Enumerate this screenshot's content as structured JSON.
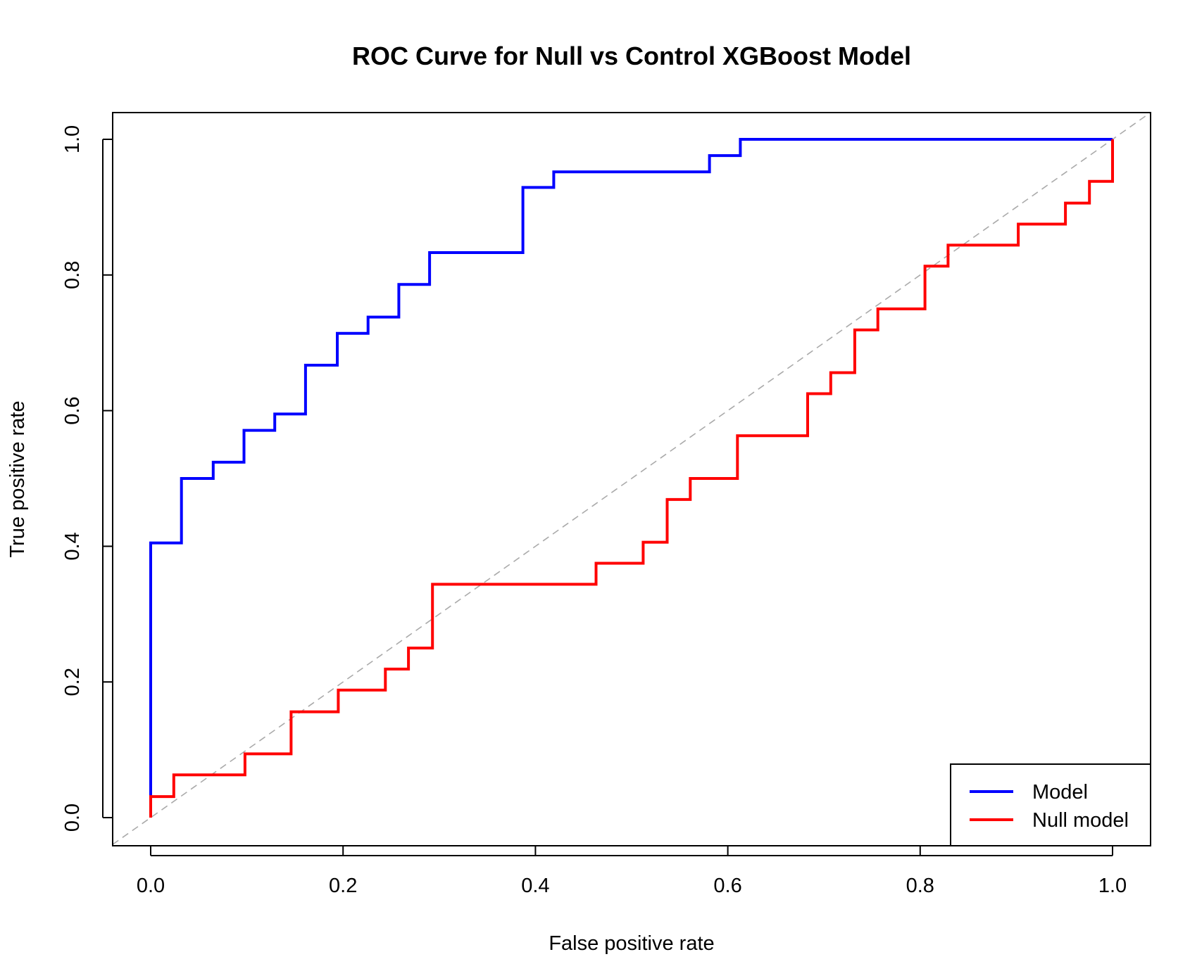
{
  "chart_data": {
    "type": "line",
    "title": "ROC Curve for Null vs Control XGBoost Model",
    "xlabel": "False positive rate",
    "ylabel": "True positive rate",
    "xlim": [
      0,
      1
    ],
    "ylim": [
      0,
      1
    ],
    "xticks": [
      "0.0",
      "0.2",
      "0.4",
      "0.6",
      "0.8",
      "1.0"
    ],
    "yticks": [
      "0.0",
      "0.2",
      "0.4",
      "0.6",
      "0.8",
      "1.0"
    ],
    "grid": false,
    "legend_position": "bottom-right",
    "series": [
      {
        "name": "Model",
        "color": "#0000ff",
        "step": true,
        "x": [
          0.0,
          0.0,
          0.032,
          0.032,
          0.065,
          0.065,
          0.097,
          0.097,
          0.129,
          0.129,
          0.161,
          0.161,
          0.194,
          0.194,
          0.226,
          0.226,
          0.258,
          0.258,
          0.29,
          0.29,
          0.387,
          0.387,
          0.419,
          0.419,
          0.581,
          0.581,
          0.613,
          0.613,
          1.0
        ],
        "y": [
          0.0,
          0.405,
          0.405,
          0.5,
          0.5,
          0.524,
          0.524,
          0.571,
          0.571,
          0.595,
          0.595,
          0.667,
          0.667,
          0.714,
          0.714,
          0.738,
          0.738,
          0.786,
          0.786,
          0.833,
          0.833,
          0.929,
          0.929,
          0.952,
          0.952,
          0.976,
          0.976,
          1.0,
          1.0
        ]
      },
      {
        "name": "Null model",
        "color": "#ff0000",
        "step": true,
        "x": [
          0.0,
          0.0,
          0.024,
          0.024,
          0.098,
          0.098,
          0.146,
          0.146,
          0.195,
          0.195,
          0.244,
          0.244,
          0.268,
          0.268,
          0.293,
          0.293,
          0.463,
          0.463,
          0.512,
          0.512,
          0.537,
          0.537,
          0.561,
          0.561,
          0.61,
          0.61,
          0.683,
          0.683,
          0.707,
          0.707,
          0.732,
          0.732,
          0.756,
          0.756,
          0.805,
          0.805,
          0.829,
          0.829,
          0.902,
          0.902,
          0.951,
          0.951,
          0.976,
          0.976,
          1.0,
          1.0
        ],
        "y": [
          0.0,
          0.031,
          0.031,
          0.063,
          0.063,
          0.094,
          0.094,
          0.156,
          0.156,
          0.188,
          0.188,
          0.219,
          0.219,
          0.25,
          0.25,
          0.344,
          0.344,
          0.375,
          0.375,
          0.406,
          0.406,
          0.469,
          0.469,
          0.5,
          0.5,
          0.563,
          0.563,
          0.625,
          0.625,
          0.656,
          0.656,
          0.719,
          0.719,
          0.75,
          0.75,
          0.813,
          0.813,
          0.844,
          0.844,
          0.875,
          0.875,
          0.906,
          0.906,
          0.938,
          0.938,
          1.0
        ]
      }
    ],
    "reference_line": {
      "from": [
        0,
        0
      ],
      "to": [
        1,
        1
      ],
      "style": "dashed",
      "color": "#aaaaaa"
    }
  }
}
